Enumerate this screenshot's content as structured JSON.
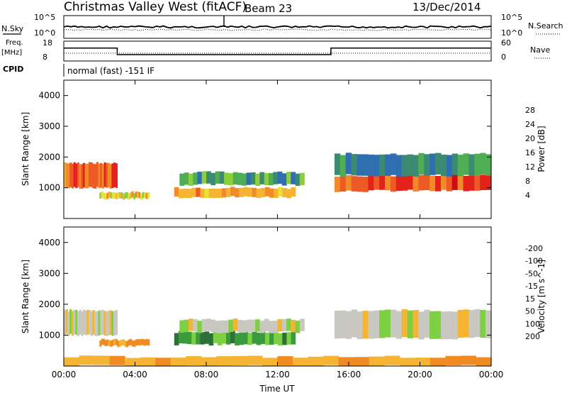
{
  "header": {
    "station": "Christmas Valley West (fitACF)",
    "beam": "Beam 23",
    "date": "13/Dec/2014"
  },
  "chart_data": [
    {
      "type": "line",
      "left_label": "N.Sky",
      "right_label": "N.Search",
      "left_ticks": [
        "10^5",
        "10^0"
      ],
      "right_ticks": [
        "10^5",
        "10^0"
      ]
    },
    {
      "type": "line",
      "left_label": "Freq.",
      "left_unit": "[MHz]",
      "right_label": "Nave",
      "left_ticks": [
        "18",
        "8"
      ],
      "right_ticks": [
        "60",
        "0"
      ],
      "frequency_mhz_segments": [
        {
          "start": "00:00",
          "end": "03:00",
          "value": 14.5
        },
        {
          "start": "03:00",
          "end": "15:00",
          "value": 11.2
        },
        {
          "start": "15:00",
          "end": "24:00",
          "value": 14.5
        }
      ]
    },
    {
      "type": "text",
      "left_label": "CPID",
      "text": "normal (fast) -151 IF"
    },
    {
      "type": "heatmap",
      "ylabel": "Slant Range [km]",
      "yticks": [
        "1000",
        "2000",
        "3000",
        "4000"
      ],
      "ylim": [
        0,
        4500
      ],
      "xlim": [
        "00:00",
        "24:00"
      ],
      "colorbar": {
        "label": "Power [dB]",
        "ticks": [
          "4",
          "8",
          "12",
          "16",
          "20",
          "24",
          "28"
        ],
        "range": [
          0,
          30
        ],
        "colors": [
          "#1a2ee0",
          "#2a53c9",
          "#2f6fb0",
          "#3c8a72",
          "#4fae54",
          "#8ccf3a",
          "#e6e23a",
          "#f5b432",
          "#f38a2a",
          "#ee5a26",
          "#e3221c",
          "#d10b10"
        ]
      },
      "features": [
        {
          "start_h": 0.0,
          "end_h": 3.0,
          "range_start_km": 1000,
          "range_end_km": 1800,
          "level_db": 24
        },
        {
          "start_h": 2.0,
          "end_h": 4.8,
          "range_start_km": 650,
          "range_end_km": 850,
          "level_db": 18
        },
        {
          "start_h": 6.2,
          "end_h": 13.0,
          "range_start_km": 700,
          "range_end_km": 1000,
          "level_db": 20
        },
        {
          "start_h": 6.5,
          "end_h": 13.5,
          "range_start_km": 1100,
          "range_end_km": 1500,
          "level_db": 10
        },
        {
          "start_h": 15.2,
          "end_h": 24.0,
          "range_start_km": 900,
          "range_end_km": 1400,
          "level_db": 25
        },
        {
          "start_h": 15.2,
          "end_h": 24.0,
          "range_start_km": 1400,
          "range_end_km": 2100,
          "level_db": 8
        }
      ]
    },
    {
      "type": "heatmap",
      "ylabel": "Slant Range [km]",
      "yticks": [
        "1000",
        "2000",
        "3000",
        "4000"
      ],
      "ylim": [
        0,
        4500
      ],
      "xlim": [
        "00:00",
        "24:00"
      ],
      "xticks": [
        "00:00",
        "04:00",
        "08:00",
        "12:00",
        "16:00",
        "20:00",
        "00:00"
      ],
      "xlabel": "Time UT",
      "colorbar": {
        "label": "Velocity [m s^-1]",
        "ticks": [
          "200",
          "100",
          "50",
          "15",
          "-15",
          "-50",
          "-100",
          "-200"
        ],
        "colors": [
          "#2038c0",
          "#2e6f3a",
          "#3a9a3e",
          "#7cd042",
          "#c9c8c0",
          "#f5b432",
          "#f08a22",
          "#ee5a22",
          "#e01c14"
        ]
      },
      "features": [
        {
          "start_h": 0.0,
          "end_h": 3.0,
          "range_start_km": 1000,
          "range_end_km": 1800,
          "velocity_ms": 0
        },
        {
          "start_h": 2.0,
          "end_h": 4.8,
          "range_start_km": 650,
          "range_end_km": 850,
          "velocity_ms": -60
        },
        {
          "start_h": 6.2,
          "end_h": 13.0,
          "range_start_km": 700,
          "range_end_km": 1100,
          "velocity_ms": 40
        },
        {
          "start_h": 6.5,
          "end_h": 13.5,
          "range_start_km": 1100,
          "range_end_km": 1500,
          "velocity_ms": 0
        },
        {
          "start_h": 15.2,
          "end_h": 24.0,
          "range_start_km": 900,
          "range_end_km": 1800,
          "velocity_ms": 0
        },
        {
          "start_h": 0.0,
          "end_h": 24.0,
          "range_start_km": 0,
          "range_end_km": 300,
          "velocity_ms": -40
        }
      ]
    }
  ]
}
